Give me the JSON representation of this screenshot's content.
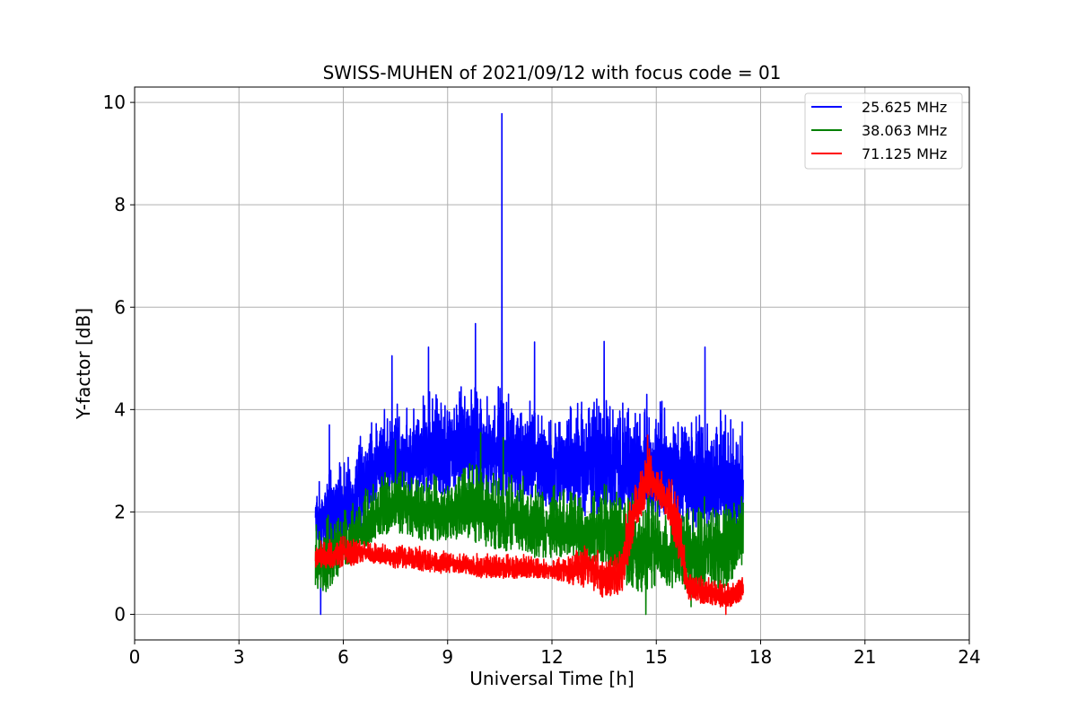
{
  "chart_data": {
    "type": "line",
    "title": "SWISS-MUHEN of 2021/09/12 with focus code = 01",
    "xlabel": "Universal Time [h]",
    "ylabel": "Y-factor [dB]",
    "xlim": [
      0,
      24
    ],
    "ylim": [
      -0.5,
      10.3
    ],
    "xticks": [
      0,
      3,
      6,
      9,
      12,
      15,
      18,
      21,
      24
    ],
    "yticks": [
      0,
      2,
      4,
      6,
      8,
      10
    ],
    "grid": true,
    "legend_position": "top-right",
    "series": [
      {
        "name": "25.625 MHz",
        "color": "#0000ff",
        "x": [
          5.2,
          5.5,
          6.0,
          6.5,
          7.0,
          7.5,
          8.0,
          8.5,
          9.0,
          9.5,
          10.0,
          10.5,
          11.0,
          11.5,
          12.0,
          12.5,
          13.0,
          13.5,
          14.0,
          14.5,
          15.0,
          15.5,
          16.0,
          16.5,
          17.0,
          17.5
        ],
        "low": [
          1.5,
          1.1,
          1.4,
          1.7,
          2.3,
          2.4,
          2.3,
          2.4,
          2.2,
          2.5,
          2.2,
          2.3,
          2.2,
          2.0,
          2.0,
          2.1,
          1.9,
          2.0,
          1.9,
          1.9,
          1.9,
          1.8,
          1.6,
          1.6,
          1.6,
          1.5
        ],
        "high": [
          2.4,
          3.0,
          3.1,
          3.6,
          4.0,
          4.2,
          4.3,
          4.6,
          4.5,
          4.7,
          4.6,
          4.5,
          4.5,
          4.3,
          4.2,
          4.2,
          4.4,
          4.5,
          4.3,
          4.4,
          4.4,
          4.2,
          4.2,
          4.3,
          4.1,
          3.9
        ],
        "peaks": [
          {
            "x": 5.35,
            "y": 0.0
          },
          {
            "x": 5.6,
            "y": 3.7
          },
          {
            "x": 7.4,
            "y": 5.05
          },
          {
            "x": 8.45,
            "y": 5.22
          },
          {
            "x": 9.8,
            "y": 5.68
          },
          {
            "x": 10.56,
            "y": 9.78
          },
          {
            "x": 11.5,
            "y": 5.32
          },
          {
            "x": 13.5,
            "y": 5.33
          },
          {
            "x": 16.4,
            "y": 5.22
          }
        ]
      },
      {
        "name": "38.063 MHz",
        "color": "#008000",
        "x": [
          5.2,
          5.5,
          6.0,
          6.5,
          7.0,
          7.5,
          8.0,
          8.5,
          9.0,
          9.5,
          10.0,
          10.5,
          11.0,
          11.5,
          12.0,
          12.5,
          13.0,
          13.5,
          14.0,
          14.5,
          15.0,
          15.5,
          16.0,
          16.5,
          17.0,
          17.5
        ],
        "low": [
          0.5,
          0.4,
          0.9,
          1.2,
          1.5,
          1.6,
          1.5,
          1.4,
          1.4,
          1.5,
          1.3,
          1.2,
          1.3,
          1.1,
          1.1,
          1.1,
          1.0,
          0.9,
          0.6,
          0.4,
          0.5,
          0.5,
          0.3,
          0.5,
          0.5,
          1.0
        ],
        "high": [
          1.8,
          2.0,
          2.1,
          2.4,
          2.8,
          3.0,
          2.9,
          2.8,
          2.7,
          3.2,
          3.1,
          2.9,
          2.8,
          2.7,
          2.6,
          2.6,
          2.5,
          2.6,
          2.6,
          2.4,
          2.4,
          2.3,
          2.3,
          2.3,
          2.4,
          2.6
        ],
        "peaks": [
          {
            "x": 7.5,
            "y": 3.4
          },
          {
            "x": 9.95,
            "y": 3.55
          },
          {
            "x": 10.6,
            "y": 3.45
          },
          {
            "x": 14.7,
            "y": 0.0
          },
          {
            "x": 16.0,
            "y": 0.15
          }
        ]
      },
      {
        "name": "71.125 MHz",
        "color": "#ff0000",
        "x": [
          5.2,
          5.5,
          6.0,
          6.5,
          7.0,
          7.5,
          8.0,
          8.5,
          9.0,
          9.5,
          10.0,
          10.5,
          11.0,
          11.5,
          12.0,
          12.5,
          13.0,
          13.5,
          14.0,
          14.2,
          14.5,
          14.8,
          15.0,
          15.3,
          15.6,
          15.9,
          16.2,
          16.5,
          17.0,
          17.5
        ],
        "low": [
          0.9,
          0.9,
          0.9,
          1.0,
          1.0,
          0.9,
          0.9,
          0.8,
          0.8,
          0.8,
          0.7,
          0.7,
          0.7,
          0.7,
          0.7,
          0.6,
          0.5,
          0.3,
          0.4,
          1.0,
          1.8,
          2.3,
          2.2,
          1.9,
          1.2,
          0.3,
          0.2,
          0.2,
          0.1,
          0.3
        ],
        "high": [
          1.4,
          1.5,
          1.6,
          1.5,
          1.4,
          1.4,
          1.4,
          1.3,
          1.3,
          1.2,
          1.2,
          1.2,
          1.2,
          1.2,
          1.1,
          1.2,
          1.5,
          1.3,
          1.3,
          2.5,
          2.9,
          3.3,
          3.0,
          2.8,
          2.6,
          0.9,
          0.8,
          0.8,
          0.7,
          0.8
        ],
        "peaks": [
          {
            "x": 14.75,
            "y": 3.5
          },
          {
            "x": 17.0,
            "y": 0.0
          }
        ]
      }
    ]
  }
}
